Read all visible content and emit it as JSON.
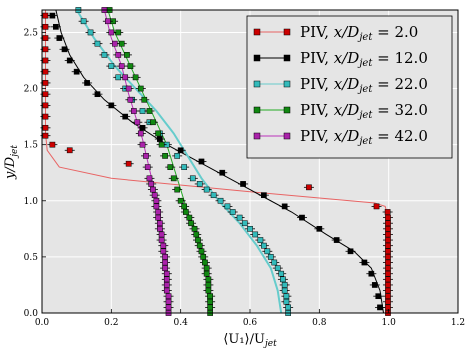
{
  "chart_data": {
    "type": "line",
    "title": "",
    "xlabel": "⟨U₁⟩/U",
    "xlabel_sub": "jet",
    "ylabel": "y/D",
    "ylabel_sub": "jet",
    "xlim": [
      0.0,
      1.2
    ],
    "ylim": [
      0.0,
      2.7
    ],
    "xticks": [
      "0.0",
      "0.2",
      "0.4",
      "0.6",
      "0.8",
      "1.0",
      "1.2"
    ],
    "yticks": [
      "0.0",
      "0.5",
      "1.0",
      "1.5",
      "2.0",
      "2.5"
    ],
    "grid": true,
    "legend_position": "top-right",
    "series": [
      {
        "name": "PIV,",
        "legend_var": "x/D",
        "legend_sub": "jet",
        "legend_val": " = 2.0",
        "color": "#cc0000",
        "line_color": "#e86464",
        "points": [
          [
            0.998,
            0.0
          ],
          [
            0.998,
            0.05
          ],
          [
            0.998,
            0.1
          ],
          [
            0.998,
            0.15
          ],
          [
            0.998,
            0.2
          ],
          [
            0.998,
            0.25
          ],
          [
            0.998,
            0.3
          ],
          [
            0.998,
            0.35
          ],
          [
            0.998,
            0.4
          ],
          [
            0.998,
            0.45
          ],
          [
            0.998,
            0.5
          ],
          [
            0.998,
            0.55
          ],
          [
            0.998,
            0.6
          ],
          [
            0.998,
            0.65
          ],
          [
            0.998,
            0.7
          ],
          [
            0.998,
            0.75
          ],
          [
            0.998,
            0.8
          ],
          [
            0.998,
            0.85
          ],
          [
            0.997,
            0.9
          ],
          [
            0.965,
            0.95
          ],
          [
            0.77,
            1.12
          ],
          [
            0.25,
            1.33
          ],
          [
            0.08,
            1.45
          ],
          [
            0.03,
            1.5
          ],
          [
            0.01,
            1.58
          ],
          [
            0.01,
            1.65
          ],
          [
            0.01,
            1.75
          ],
          [
            0.01,
            1.85
          ],
          [
            0.01,
            1.95
          ],
          [
            0.01,
            2.05
          ],
          [
            0.01,
            2.15
          ],
          [
            0.01,
            2.25
          ],
          [
            0.01,
            2.35
          ],
          [
            0.01,
            2.45
          ],
          [
            0.01,
            2.55
          ],
          [
            0.01,
            2.65
          ]
        ],
        "curve": [
          [
            0.998,
            0.0
          ],
          [
            0.998,
            0.85
          ],
          [
            0.99,
            0.95
          ],
          [
            0.96,
            0.98
          ],
          [
            0.6,
            1.08
          ],
          [
            0.2,
            1.2
          ],
          [
            0.05,
            1.3
          ],
          [
            0.015,
            1.45
          ],
          [
            0.01,
            1.6
          ],
          [
            0.01,
            2.7
          ]
        ]
      },
      {
        "name": "PIV,",
        "legend_var": "x/D",
        "legend_sub": "jet",
        "legend_val": " = 12.0",
        "color": "#000000",
        "line_color": "#000000",
        "points": [
          [
            0.975,
            0.05
          ],
          [
            0.97,
            0.15
          ],
          [
            0.96,
            0.25
          ],
          [
            0.95,
            0.35
          ],
          [
            0.93,
            0.45
          ],
          [
            0.89,
            0.55
          ],
          [
            0.85,
            0.65
          ],
          [
            0.8,
            0.75
          ],
          [
            0.75,
            0.85
          ],
          [
            0.7,
            0.95
          ],
          [
            0.64,
            1.05
          ],
          [
            0.58,
            1.15
          ],
          [
            0.52,
            1.25
          ],
          [
            0.46,
            1.35
          ],
          [
            0.4,
            1.45
          ],
          [
            0.34,
            1.55
          ],
          [
            0.29,
            1.65
          ],
          [
            0.24,
            1.75
          ],
          [
            0.2,
            1.85
          ],
          [
            0.16,
            1.95
          ],
          [
            0.13,
            2.05
          ],
          [
            0.1,
            2.15
          ],
          [
            0.08,
            2.25
          ],
          [
            0.065,
            2.35
          ],
          [
            0.05,
            2.45
          ],
          [
            0.04,
            2.55
          ],
          [
            0.03,
            2.65
          ]
        ],
        "curve": [
          [
            0.985,
            0.0
          ],
          [
            0.975,
            0.2
          ],
          [
            0.95,
            0.4
          ],
          [
            0.9,
            0.55
          ],
          [
            0.82,
            0.7
          ],
          [
            0.72,
            0.9
          ],
          [
            0.6,
            1.1
          ],
          [
            0.48,
            1.3
          ],
          [
            0.36,
            1.5
          ],
          [
            0.26,
            1.7
          ],
          [
            0.18,
            1.9
          ],
          [
            0.12,
            2.1
          ],
          [
            0.08,
            2.3
          ],
          [
            0.055,
            2.5
          ],
          [
            0.04,
            2.7
          ]
        ]
      },
      {
        "name": "PIV,",
        "legend_var": "x/D",
        "legend_sub": "jet",
        "legend_val": " = 22.0",
        "color": "#33bbbb",
        "line_color": "#66cccc",
        "points": [
          [
            0.71,
            0.0
          ],
          [
            0.71,
            0.05
          ],
          [
            0.705,
            0.1
          ],
          [
            0.705,
            0.15
          ],
          [
            0.7,
            0.2
          ],
          [
            0.7,
            0.25
          ],
          [
            0.695,
            0.3
          ],
          [
            0.69,
            0.35
          ],
          [
            0.68,
            0.4
          ],
          [
            0.67,
            0.45
          ],
          [
            0.66,
            0.5
          ],
          [
            0.65,
            0.55
          ],
          [
            0.64,
            0.6
          ],
          [
            0.63,
            0.65
          ],
          [
            0.615,
            0.7
          ],
          [
            0.6,
            0.75
          ],
          [
            0.585,
            0.8
          ],
          [
            0.57,
            0.85
          ],
          [
            0.55,
            0.9
          ],
          [
            0.535,
            0.95
          ],
          [
            0.515,
            1.0
          ],
          [
            0.495,
            1.05
          ],
          [
            0.475,
            1.1
          ],
          [
            0.455,
            1.15
          ],
          [
            0.435,
            1.2
          ],
          [
            0.41,
            1.3
          ],
          [
            0.39,
            1.4
          ],
          [
            0.36,
            1.5
          ],
          [
            0.34,
            1.6
          ],
          [
            0.31,
            1.7
          ],
          [
            0.29,
            1.8
          ],
          [
            0.26,
            1.9
          ],
          [
            0.24,
            2.0
          ],
          [
            0.22,
            2.1
          ],
          [
            0.2,
            2.2
          ],
          [
            0.18,
            2.3
          ],
          [
            0.16,
            2.4
          ],
          [
            0.14,
            2.5
          ],
          [
            0.12,
            2.6
          ],
          [
            0.105,
            2.7
          ]
        ],
        "curve": [
          [
            0.69,
            0.0
          ],
          [
            0.68,
            0.2
          ],
          [
            0.66,
            0.4
          ],
          [
            0.62,
            0.6
          ],
          [
            0.57,
            0.8
          ],
          [
            0.51,
            1.0
          ],
          [
            0.46,
            1.2
          ],
          [
            0.42,
            1.4
          ],
          [
            0.38,
            1.6
          ],
          [
            0.33,
            1.8
          ],
          [
            0.27,
            2.0
          ],
          [
            0.21,
            2.2
          ],
          [
            0.15,
            2.45
          ],
          [
            0.1,
            2.7
          ]
        ]
      },
      {
        "name": "PIV,",
        "legend_var": "x/D",
        "legend_sub": "jet",
        "legend_val": " = 32.0",
        "color": "#118811",
        "line_color": "#22aa22",
        "points": [
          [
            0.485,
            0.0
          ],
          [
            0.485,
            0.05
          ],
          [
            0.485,
            0.1
          ],
          [
            0.485,
            0.15
          ],
          [
            0.48,
            0.2
          ],
          [
            0.48,
            0.25
          ],
          [
            0.48,
            0.3
          ],
          [
            0.475,
            0.35
          ],
          [
            0.475,
            0.4
          ],
          [
            0.47,
            0.45
          ],
          [
            0.465,
            0.5
          ],
          [
            0.46,
            0.55
          ],
          [
            0.455,
            0.6
          ],
          [
            0.45,
            0.65
          ],
          [
            0.445,
            0.7
          ],
          [
            0.44,
            0.75
          ],
          [
            0.43,
            0.8
          ],
          [
            0.425,
            0.85
          ],
          [
            0.415,
            0.9
          ],
          [
            0.41,
            0.95
          ],
          [
            0.4,
            1.0
          ],
          [
            0.39,
            1.1
          ],
          [
            0.38,
            1.2
          ],
          [
            0.37,
            1.3
          ],
          [
            0.355,
            1.4
          ],
          [
            0.345,
            1.5
          ],
          [
            0.335,
            1.6
          ],
          [
            0.32,
            1.7
          ],
          [
            0.31,
            1.8
          ],
          [
            0.295,
            1.9
          ],
          [
            0.285,
            2.0
          ],
          [
            0.27,
            2.1
          ],
          [
            0.255,
            2.2
          ],
          [
            0.245,
            2.3
          ],
          [
            0.23,
            2.4
          ],
          [
            0.22,
            2.5
          ],
          [
            0.205,
            2.6
          ],
          [
            0.195,
            2.7
          ]
        ],
        "curve": [
          [
            0.48,
            0.0
          ],
          [
            0.475,
            0.3
          ],
          [
            0.465,
            0.5
          ],
          [
            0.45,
            0.7
          ],
          [
            0.42,
            0.9
          ],
          [
            0.4,
            1.1
          ],
          [
            0.38,
            1.3
          ],
          [
            0.36,
            1.5
          ],
          [
            0.33,
            1.7
          ],
          [
            0.3,
            1.9
          ],
          [
            0.27,
            2.1
          ],
          [
            0.24,
            2.3
          ],
          [
            0.21,
            2.5
          ],
          [
            0.19,
            2.7
          ]
        ]
      },
      {
        "name": "PIV,",
        "legend_var": "x/D",
        "legend_sub": "jet",
        "legend_val": " = 42.0",
        "color": "#aa22aa",
        "line_color": "#bb33bb",
        "points": [
          [
            0.365,
            0.0
          ],
          [
            0.365,
            0.05
          ],
          [
            0.365,
            0.1
          ],
          [
            0.365,
            0.15
          ],
          [
            0.36,
            0.2
          ],
          [
            0.36,
            0.25
          ],
          [
            0.36,
            0.3
          ],
          [
            0.36,
            0.35
          ],
          [
            0.355,
            0.4
          ],
          [
            0.355,
            0.45
          ],
          [
            0.355,
            0.5
          ],
          [
            0.35,
            0.55
          ],
          [
            0.35,
            0.6
          ],
          [
            0.345,
            0.65
          ],
          [
            0.345,
            0.7
          ],
          [
            0.34,
            0.75
          ],
          [
            0.34,
            0.8
          ],
          [
            0.335,
            0.85
          ],
          [
            0.335,
            0.9
          ],
          [
            0.33,
            0.95
          ],
          [
            0.33,
            1.0
          ],
          [
            0.325,
            1.05
          ],
          [
            0.32,
            1.1
          ],
          [
            0.315,
            1.15
          ],
          [
            0.31,
            1.2
          ],
          [
            0.305,
            1.3
          ],
          [
            0.3,
            1.4
          ],
          [
            0.29,
            1.5
          ],
          [
            0.285,
            1.6
          ],
          [
            0.275,
            1.7
          ],
          [
            0.265,
            1.8
          ],
          [
            0.255,
            1.9
          ],
          [
            0.25,
            2.0
          ],
          [
            0.24,
            2.1
          ],
          [
            0.23,
            2.2
          ],
          [
            0.22,
            2.3
          ],
          [
            0.21,
            2.4
          ],
          [
            0.2,
            2.5
          ],
          [
            0.19,
            2.6
          ],
          [
            0.18,
            2.7
          ]
        ],
        "curve": [
          [
            0.365,
            0.0
          ],
          [
            0.36,
            0.4
          ],
          [
            0.35,
            0.7
          ],
          [
            0.335,
            0.95
          ],
          [
            0.32,
            1.15
          ],
          [
            0.305,
            1.35
          ],
          [
            0.29,
            1.55
          ],
          [
            0.27,
            1.75
          ],
          [
            0.25,
            1.95
          ],
          [
            0.23,
            2.2
          ],
          [
            0.2,
            2.45
          ],
          [
            0.18,
            2.7
          ]
        ]
      }
    ]
  }
}
